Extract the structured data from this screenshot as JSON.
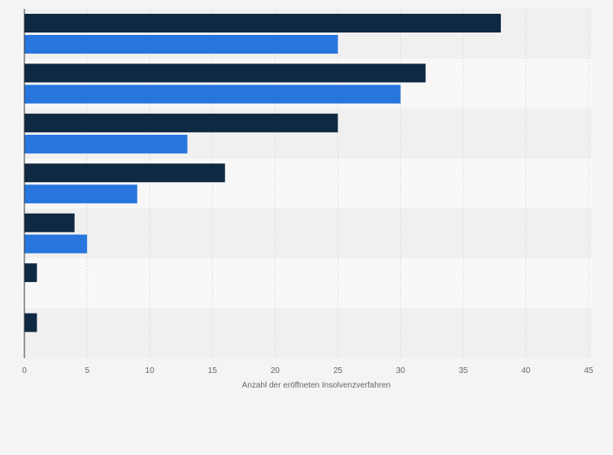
{
  "chart_data": {
    "type": "bar",
    "orientation": "horizontal",
    "categories": [
      "",
      "",
      "",
      "",
      "",
      "",
      ""
    ],
    "series": [
      {
        "color": "#0f2942",
        "values": [
          38,
          32,
          25,
          16,
          4,
          1,
          1
        ]
      },
      {
        "color": "#2876dd",
        "values": [
          25,
          30,
          13,
          9,
          5,
          0,
          0
        ]
      }
    ],
    "xlabel": "Anzahl der eröffneten Insolvenzverfahren",
    "ylabel": "",
    "xlim": [
      0,
      45
    ],
    "xticks": [
      0,
      5,
      10,
      15,
      20,
      25,
      30,
      35,
      40,
      45
    ],
    "xtick_labels": [
      "0",
      "5",
      "10",
      "15",
      "20",
      "25",
      "30",
      "35",
      "40",
      "45"
    ],
    "grid": true,
    "legend": "none"
  }
}
